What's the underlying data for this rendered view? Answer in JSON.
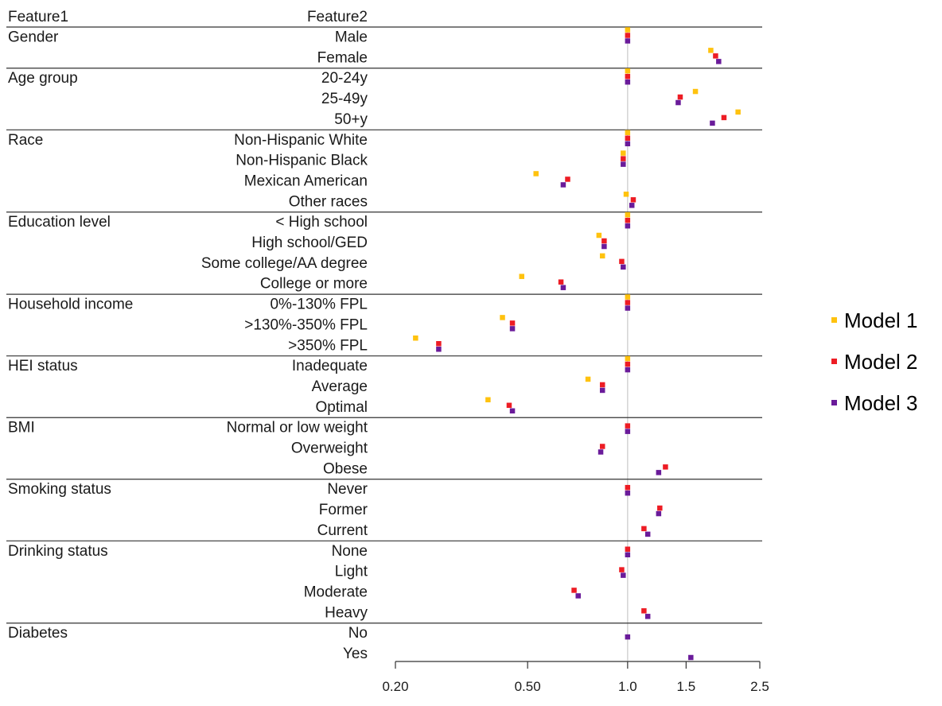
{
  "chart_data": {
    "type": "scatter",
    "subtype": "forest-plot",
    "title": "",
    "column_headers": {
      "feature1": "Feature1",
      "feature2": "Feature2"
    },
    "x_scale": "log",
    "xlim": [
      0.2,
      2.5
    ],
    "x_ticks": [
      {
        "value": 0.2,
        "label": "0.20"
      },
      {
        "value": 0.5,
        "label": "0.50"
      },
      {
        "value": 1.0,
        "label": "1.0"
      },
      {
        "value": 1.5,
        "label": "1.5"
      },
      {
        "value": 2.5,
        "label": "2.5"
      }
    ],
    "reference_line": 1.0,
    "series": [
      {
        "name": "Model 1",
        "color": "#FFC20E"
      },
      {
        "name": "Model 2",
        "color": "#ED1C24"
      },
      {
        "name": "Model 3",
        "color": "#6A1B9A"
      }
    ],
    "legend_position": "right",
    "groups": [
      {
        "feature": "Gender",
        "rows": [
          {
            "label": "Male",
            "values": [
              1.0,
              1.0,
              1.0
            ]
          },
          {
            "label": "Female",
            "values": [
              1.78,
              1.84,
              1.88
            ]
          }
        ]
      },
      {
        "feature": "Age group",
        "rows": [
          {
            "label": "20-24y",
            "values": [
              1.0,
              1.0,
              1.0
            ]
          },
          {
            "label": "25-49y",
            "values": [
              1.6,
              1.44,
              1.42
            ]
          },
          {
            "label": "50+y",
            "values": [
              2.15,
              1.95,
              1.8
            ]
          }
        ]
      },
      {
        "feature": "Race",
        "rows": [
          {
            "label": "Non-Hispanic White",
            "values": [
              1.0,
              1.0,
              1.0
            ]
          },
          {
            "label": "Non-Hispanic Black",
            "values": [
              0.97,
              0.97,
              0.97
            ]
          },
          {
            "label": "Mexican American",
            "values": [
              0.53,
              0.66,
              0.64
            ]
          },
          {
            "label": "Other races",
            "values": [
              0.99,
              1.04,
              1.03
            ]
          }
        ]
      },
      {
        "feature": "Education level",
        "rows": [
          {
            "label": "< High school",
            "values": [
              1.0,
              1.0,
              1.0
            ]
          },
          {
            "label": "High school/GED",
            "values": [
              0.82,
              0.85,
              0.85
            ]
          },
          {
            "label": "Some college/AA degree",
            "values": [
              0.84,
              0.96,
              0.97
            ]
          },
          {
            "label": "College or more",
            "values": [
              0.48,
              0.63,
              0.64
            ]
          }
        ]
      },
      {
        "feature": "Household income",
        "rows": [
          {
            "label": "0%-130% FPL",
            "values": [
              1.0,
              1.0,
              1.0
            ]
          },
          {
            "label": ">130%-350% FPL",
            "values": [
              0.42,
              0.45,
              0.45
            ]
          },
          {
            "label": ">350% FPL",
            "values": [
              0.23,
              0.27,
              0.27
            ]
          }
        ]
      },
      {
        "feature": "HEI status",
        "rows": [
          {
            "label": "Inadequate",
            "values": [
              1.0,
              1.0,
              1.0
            ]
          },
          {
            "label": "Average",
            "values": [
              0.76,
              0.84,
              0.84
            ]
          },
          {
            "label": "Optimal",
            "values": [
              0.38,
              0.44,
              0.45
            ]
          }
        ]
      },
      {
        "feature": "BMI",
        "rows": [
          {
            "label": "Normal or low weight",
            "values": [
              null,
              1.0,
              1.0
            ]
          },
          {
            "label": "Overweight",
            "values": [
              null,
              0.84,
              0.83
            ]
          },
          {
            "label": "Obese",
            "values": [
              null,
              1.3,
              1.24
            ]
          }
        ]
      },
      {
        "feature": "Smoking status",
        "rows": [
          {
            "label": "Never",
            "values": [
              null,
              1.0,
              1.0
            ]
          },
          {
            "label": "Former",
            "values": [
              null,
              1.25,
              1.24
            ]
          },
          {
            "label": "Current",
            "values": [
              null,
              1.12,
              1.15
            ]
          }
        ]
      },
      {
        "feature": "Drinking status",
        "rows": [
          {
            "label": "None",
            "values": [
              null,
              1.0,
              1.0
            ]
          },
          {
            "label": "Light",
            "values": [
              null,
              0.96,
              0.97
            ]
          },
          {
            "label": "Moderate",
            "values": [
              null,
              0.69,
              0.71
            ]
          },
          {
            "label": "Heavy",
            "values": [
              null,
              1.12,
              1.15
            ]
          }
        ]
      },
      {
        "feature": "Diabetes",
        "rows": [
          {
            "label": "No",
            "values": [
              null,
              null,
              1.0
            ]
          },
          {
            "label": "Yes",
            "values": [
              null,
              null,
              1.55
            ]
          }
        ]
      }
    ]
  }
}
